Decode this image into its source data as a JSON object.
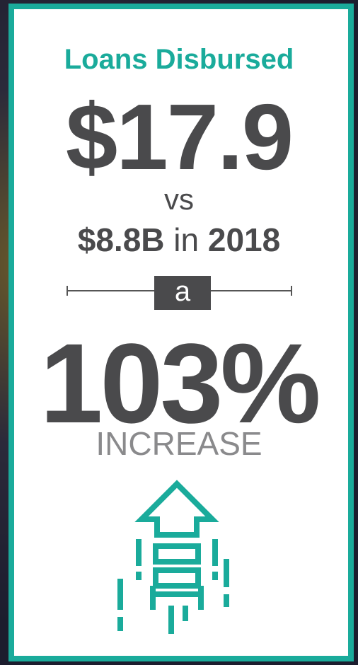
{
  "title": "Loans Disbursed",
  "main_value": "$17.9",
  "comparison": {
    "prefix": "vs",
    "amount": "$8.8B",
    "word": "in",
    "year": "2018"
  },
  "connector": "a",
  "change": {
    "value": "103%",
    "label": "INCREASE"
  }
}
